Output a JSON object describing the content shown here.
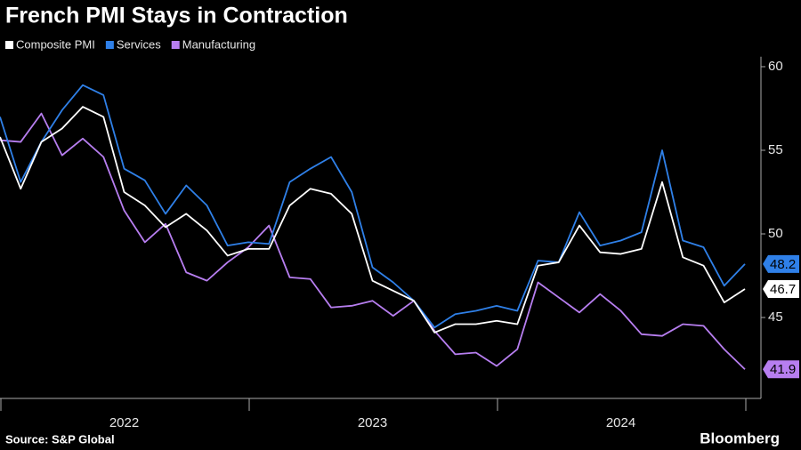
{
  "chart_data": {
    "type": "line",
    "title": "French PMI Stays in Contraction",
    "source": "Source: S&P Global",
    "brand": "Bloomberg",
    "categories": [
      null,
      null,
      null,
      null,
      null,
      null,
      null,
      null,
      null,
      null,
      null,
      null,
      null,
      null,
      null,
      null,
      null,
      null,
      null,
      null,
      null,
      null,
      null,
      null,
      null,
      null,
      null,
      null,
      null,
      null,
      null,
      null,
      null,
      null,
      null,
      null,
      null
    ],
    "year_labels": [
      "2022",
      "2023",
      "2024"
    ],
    "series": [
      {
        "name": "Composite PMI",
        "color": "#ffffff",
        "values": [
          55.8,
          52.7,
          55.5,
          56.3,
          57.6,
          57.0,
          52.5,
          51.7,
          50.4,
          51.2,
          50.2,
          48.7,
          49.1,
          49.1,
          51.7,
          52.7,
          52.4,
          51.2,
          47.2,
          46.6,
          46.0,
          44.1,
          44.6,
          44.6,
          44.8,
          44.6,
          48.1,
          48.3,
          50.5,
          48.9,
          48.8,
          49.1,
          53.1,
          48.6,
          48.1,
          45.9,
          46.7
        ]
      },
      {
        "name": "Services",
        "color": "#2f80e8",
        "values": [
          57.0,
          53.1,
          55.5,
          57.4,
          58.9,
          58.3,
          53.9,
          53.2,
          51.2,
          52.9,
          51.7,
          49.3,
          49.5,
          49.4,
          53.1,
          53.9,
          54.6,
          52.5,
          48.0,
          47.1,
          46.0,
          44.4,
          45.2,
          45.4,
          45.7,
          45.4,
          48.4,
          48.3,
          51.3,
          49.3,
          49.6,
          50.1,
          55.0,
          49.6,
          49.2,
          46.9,
          48.2
        ]
      },
      {
        "name": "Manufacturing",
        "color": "#b77ef0",
        "values": [
          55.6,
          55.5,
          57.2,
          54.7,
          55.7,
          54.6,
          51.4,
          49.5,
          50.6,
          47.7,
          47.2,
          48.3,
          49.2,
          50.5,
          47.4,
          47.3,
          45.6,
          45.7,
          46.0,
          45.1,
          46.0,
          44.2,
          42.8,
          42.9,
          42.1,
          43.1,
          47.1,
          46.2,
          45.3,
          46.4,
          45.4,
          44.0,
          43.9,
          44.6,
          44.5,
          43.1,
          41.9
        ]
      }
    ],
    "ylim": [
      40,
      60.6
    ],
    "yticks": [
      45,
      50,
      55,
      60
    ]
  }
}
